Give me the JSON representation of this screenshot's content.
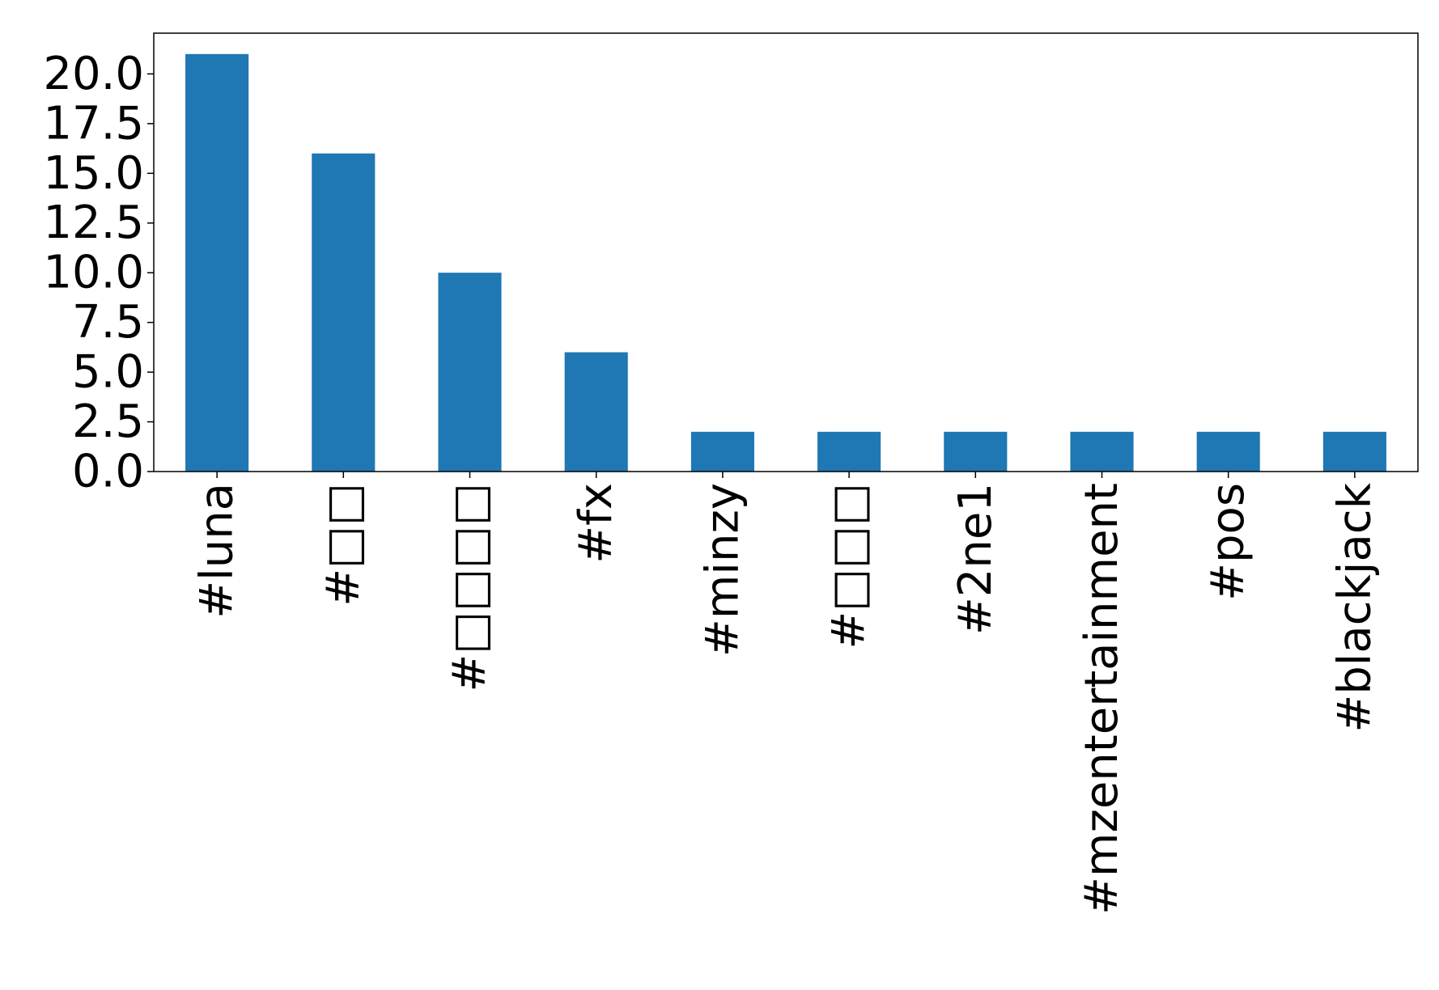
{
  "chart_data": {
    "type": "bar",
    "categories": [
      "#luna",
      "#□□",
      "#□□□□",
      "#fx",
      "#minzy",
      "#□□□",
      "#2ne1",
      "#mzentertainment",
      "#pos",
      "#blackjack"
    ],
    "values": [
      21,
      16,
      10,
      6,
      2,
      2,
      2,
      2,
      2,
      2
    ],
    "ylim": [
      0,
      22.05
    ],
    "yticks": [
      "0.0",
      "2.5",
      "5.0",
      "7.5",
      "10.0",
      "12.5",
      "15.0",
      "17.5",
      "20.0"
    ],
    "ytick_values": [
      0,
      2.5,
      5,
      7.5,
      10,
      12.5,
      15,
      17.5,
      20
    ],
    "title": "",
    "xlabel": "",
    "ylabel": "",
    "grid": false,
    "colors": {
      "bar": "#1f77b4",
      "axis": "#000000"
    }
  }
}
